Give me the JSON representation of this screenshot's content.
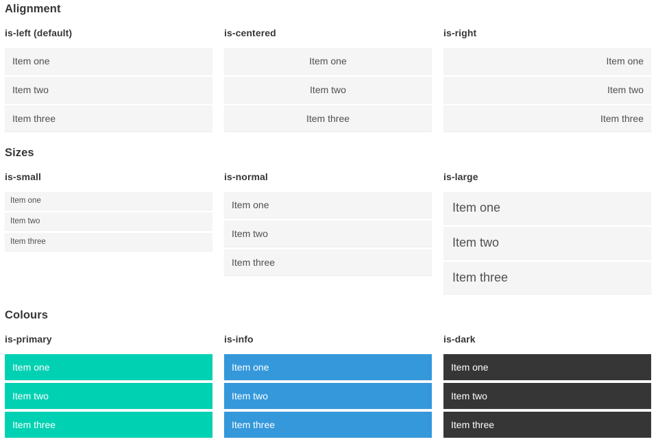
{
  "page": {
    "colors": {
      "primary": "#00d1b2",
      "info": "#3498db",
      "dark": "#363636",
      "item_bg": "#f5f5f5",
      "item_text": "#4f4f4f",
      "heading_text": "#363636"
    },
    "sections": [
      {
        "title": "Alignment",
        "groups": [
          {
            "label": "is-left (default)",
            "variant": "left",
            "items": [
              "Item one",
              "Item two",
              "Item three"
            ]
          },
          {
            "label": "is-centered",
            "variant": "centered",
            "items": [
              "Item one",
              "Item two",
              "Item three"
            ]
          },
          {
            "label": "is-right",
            "variant": "right",
            "items": [
              "Item one",
              "Item two",
              "Item three"
            ]
          }
        ]
      },
      {
        "title": "Sizes",
        "groups": [
          {
            "label": "is-small",
            "variant": "small",
            "items": [
              "Item one",
              "Item two",
              "Item three"
            ]
          },
          {
            "label": "is-normal",
            "variant": "normal",
            "items": [
              "Item one",
              "Item two",
              "Item three"
            ]
          },
          {
            "label": "is-large",
            "variant": "large",
            "items": [
              "Item one",
              "Item two",
              "Item three"
            ]
          }
        ]
      },
      {
        "title": "Colours",
        "groups": [
          {
            "label": "is-primary",
            "variant": "primary",
            "items": [
              "Item one",
              "Item two",
              "Item three"
            ]
          },
          {
            "label": "is-info",
            "variant": "info",
            "items": [
              "Item one",
              "Item two",
              "Item three"
            ]
          },
          {
            "label": "is-dark",
            "variant": "dark",
            "items": [
              "Item one",
              "Item two",
              "Item three"
            ]
          }
        ]
      }
    ]
  }
}
